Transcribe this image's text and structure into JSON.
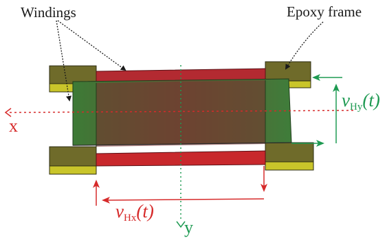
{
  "labels": {
    "windings": "Windings",
    "epoxy_frame": "Epoxy frame",
    "axis_x": "x",
    "axis_y": "y",
    "v_hx_main": "v",
    "v_hx_sub": "Hx",
    "v_hx_arg": "(t)",
    "v_hy_main": "v",
    "v_hy_sub": "Hy",
    "v_hy_arg": "(t)"
  },
  "colors": {
    "red_winding": "#b8262b",
    "red_winding_dark": "#8a1d26",
    "green_winding": "#3f7a3a",
    "epoxy_olive": "#76702a",
    "epoxy_yellow": "#c9c52a",
    "axis_red": "#d62a2a",
    "axis_green": "#1e9a52",
    "text_black": "#1a1a1a"
  }
}
